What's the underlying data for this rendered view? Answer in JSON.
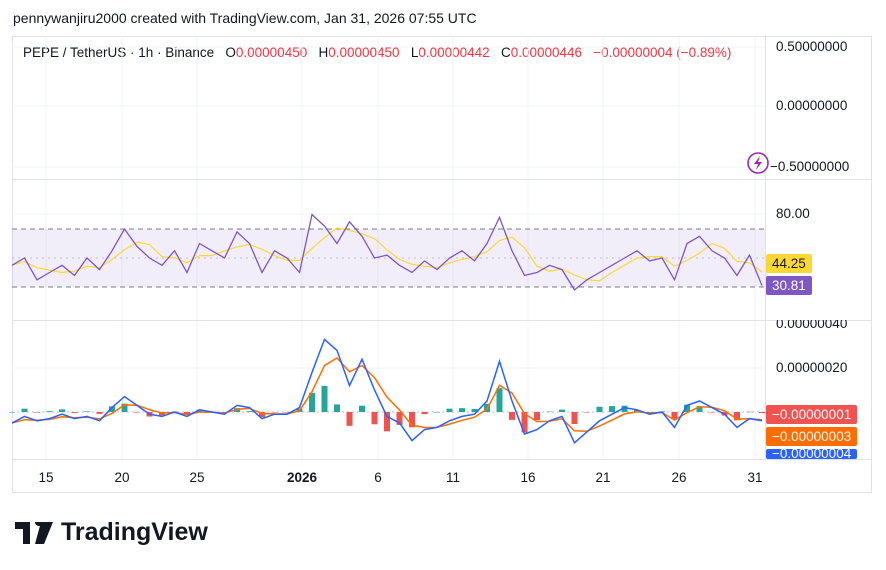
{
  "credit": "pennywanjiru2000 created with TradingView.com, Jan 31, 2026 07:55 UTC",
  "legend": {
    "symbol": "PEPE / TetherUS · 1h · Binance",
    "o_label": "O",
    "o": "0.00000450",
    "h_label": "H",
    "h": "0.00000450",
    "l_label": "L",
    "l": "0.00000442",
    "c_label": "C",
    "c": "0.00000446",
    "change": "−0.00000004 (−0.89%)"
  },
  "colors": {
    "rsi": "#7e57c2",
    "rsi_ma": "#fdd835",
    "macd": "#2962ff",
    "signal": "#ff6d00",
    "hist_pos": "#26a69a",
    "hist_neg": "#ef5350",
    "band": "#7e57c2"
  },
  "icons": {
    "alert": "lightning-icon"
  },
  "chart_data": [
    {
      "type": "line",
      "pane": "price",
      "yticks": [
        "0.50000000",
        "0.00000000",
        "−0.50000000"
      ]
    },
    {
      "type": "line",
      "pane": "rsi",
      "yticks": [
        "80.00"
      ],
      "bands": [
        70,
        30
      ],
      "ylim": [
        30,
        80
      ],
      "last_values": {
        "rsi_ma": "44.25",
        "rsi": "30.81"
      },
      "rsi": [
        45,
        50,
        35,
        40,
        45,
        38,
        50,
        42,
        55,
        70,
        58,
        50,
        45,
        55,
        40,
        60,
        55,
        50,
        68,
        60,
        40,
        55,
        50,
        40,
        80,
        72,
        60,
        75,
        65,
        50,
        52,
        45,
        40,
        48,
        42,
        50,
        55,
        48,
        60,
        78,
        55,
        38,
        40,
        45,
        42,
        28,
        35,
        40,
        45,
        50,
        55,
        48,
        50,
        35,
        60,
        65,
        55,
        50,
        38,
        52,
        31
      ]
    },
    {
      "type": "line",
      "pane": "macd",
      "yticks": [
        "0.00000040",
        "0.00000020"
      ],
      "last_values": {
        "histogram": "−0.00000001",
        "signal": "−0.00000003",
        "macd": "−0.00000004"
      },
      "macd": [
        -5e-08,
        -2e-08,
        -4e-08,
        -3e-08,
        -1e-08,
        -3e-08,
        -2e-08,
        -4e-08,
        2e-08,
        7e-08,
        3e-08,
        -1e-08,
        -2e-08,
        0,
        -2e-08,
        1e-08,
        0,
        -1e-08,
        3e-08,
        2e-08,
        -3e-08,
        -1e-08,
        -1e-08,
        2e-08,
        1.8e-07,
        3.3e-07,
        2.8e-07,
        1.2e-07,
        2.4e-07,
        1e-07,
        -2e-08,
        -5e-08,
        -1.3e-07,
        -8e-08,
        -7e-08,
        -4e-08,
        -2e-08,
        -1e-08,
        5e-08,
        2.3e-07,
        5e-08,
        -1e-07,
        -8e-08,
        -4e-08,
        -2e-08,
        -1.4e-07,
        -9e-08,
        -4e-08,
        -1e-08,
        2e-08,
        1e-08,
        -1e-08,
        0,
        -7e-08,
        3e-08,
        5e-08,
        2e-08,
        -1e-08,
        -7e-08,
        -3e-08,
        -4e-08
      ]
    },
    {
      "type": "axis",
      "xticks": [
        "15",
        "20",
        "25",
        "2026",
        "6",
        "11",
        "16",
        "21",
        "26",
        "31"
      ]
    }
  ],
  "logo": "TradingView"
}
